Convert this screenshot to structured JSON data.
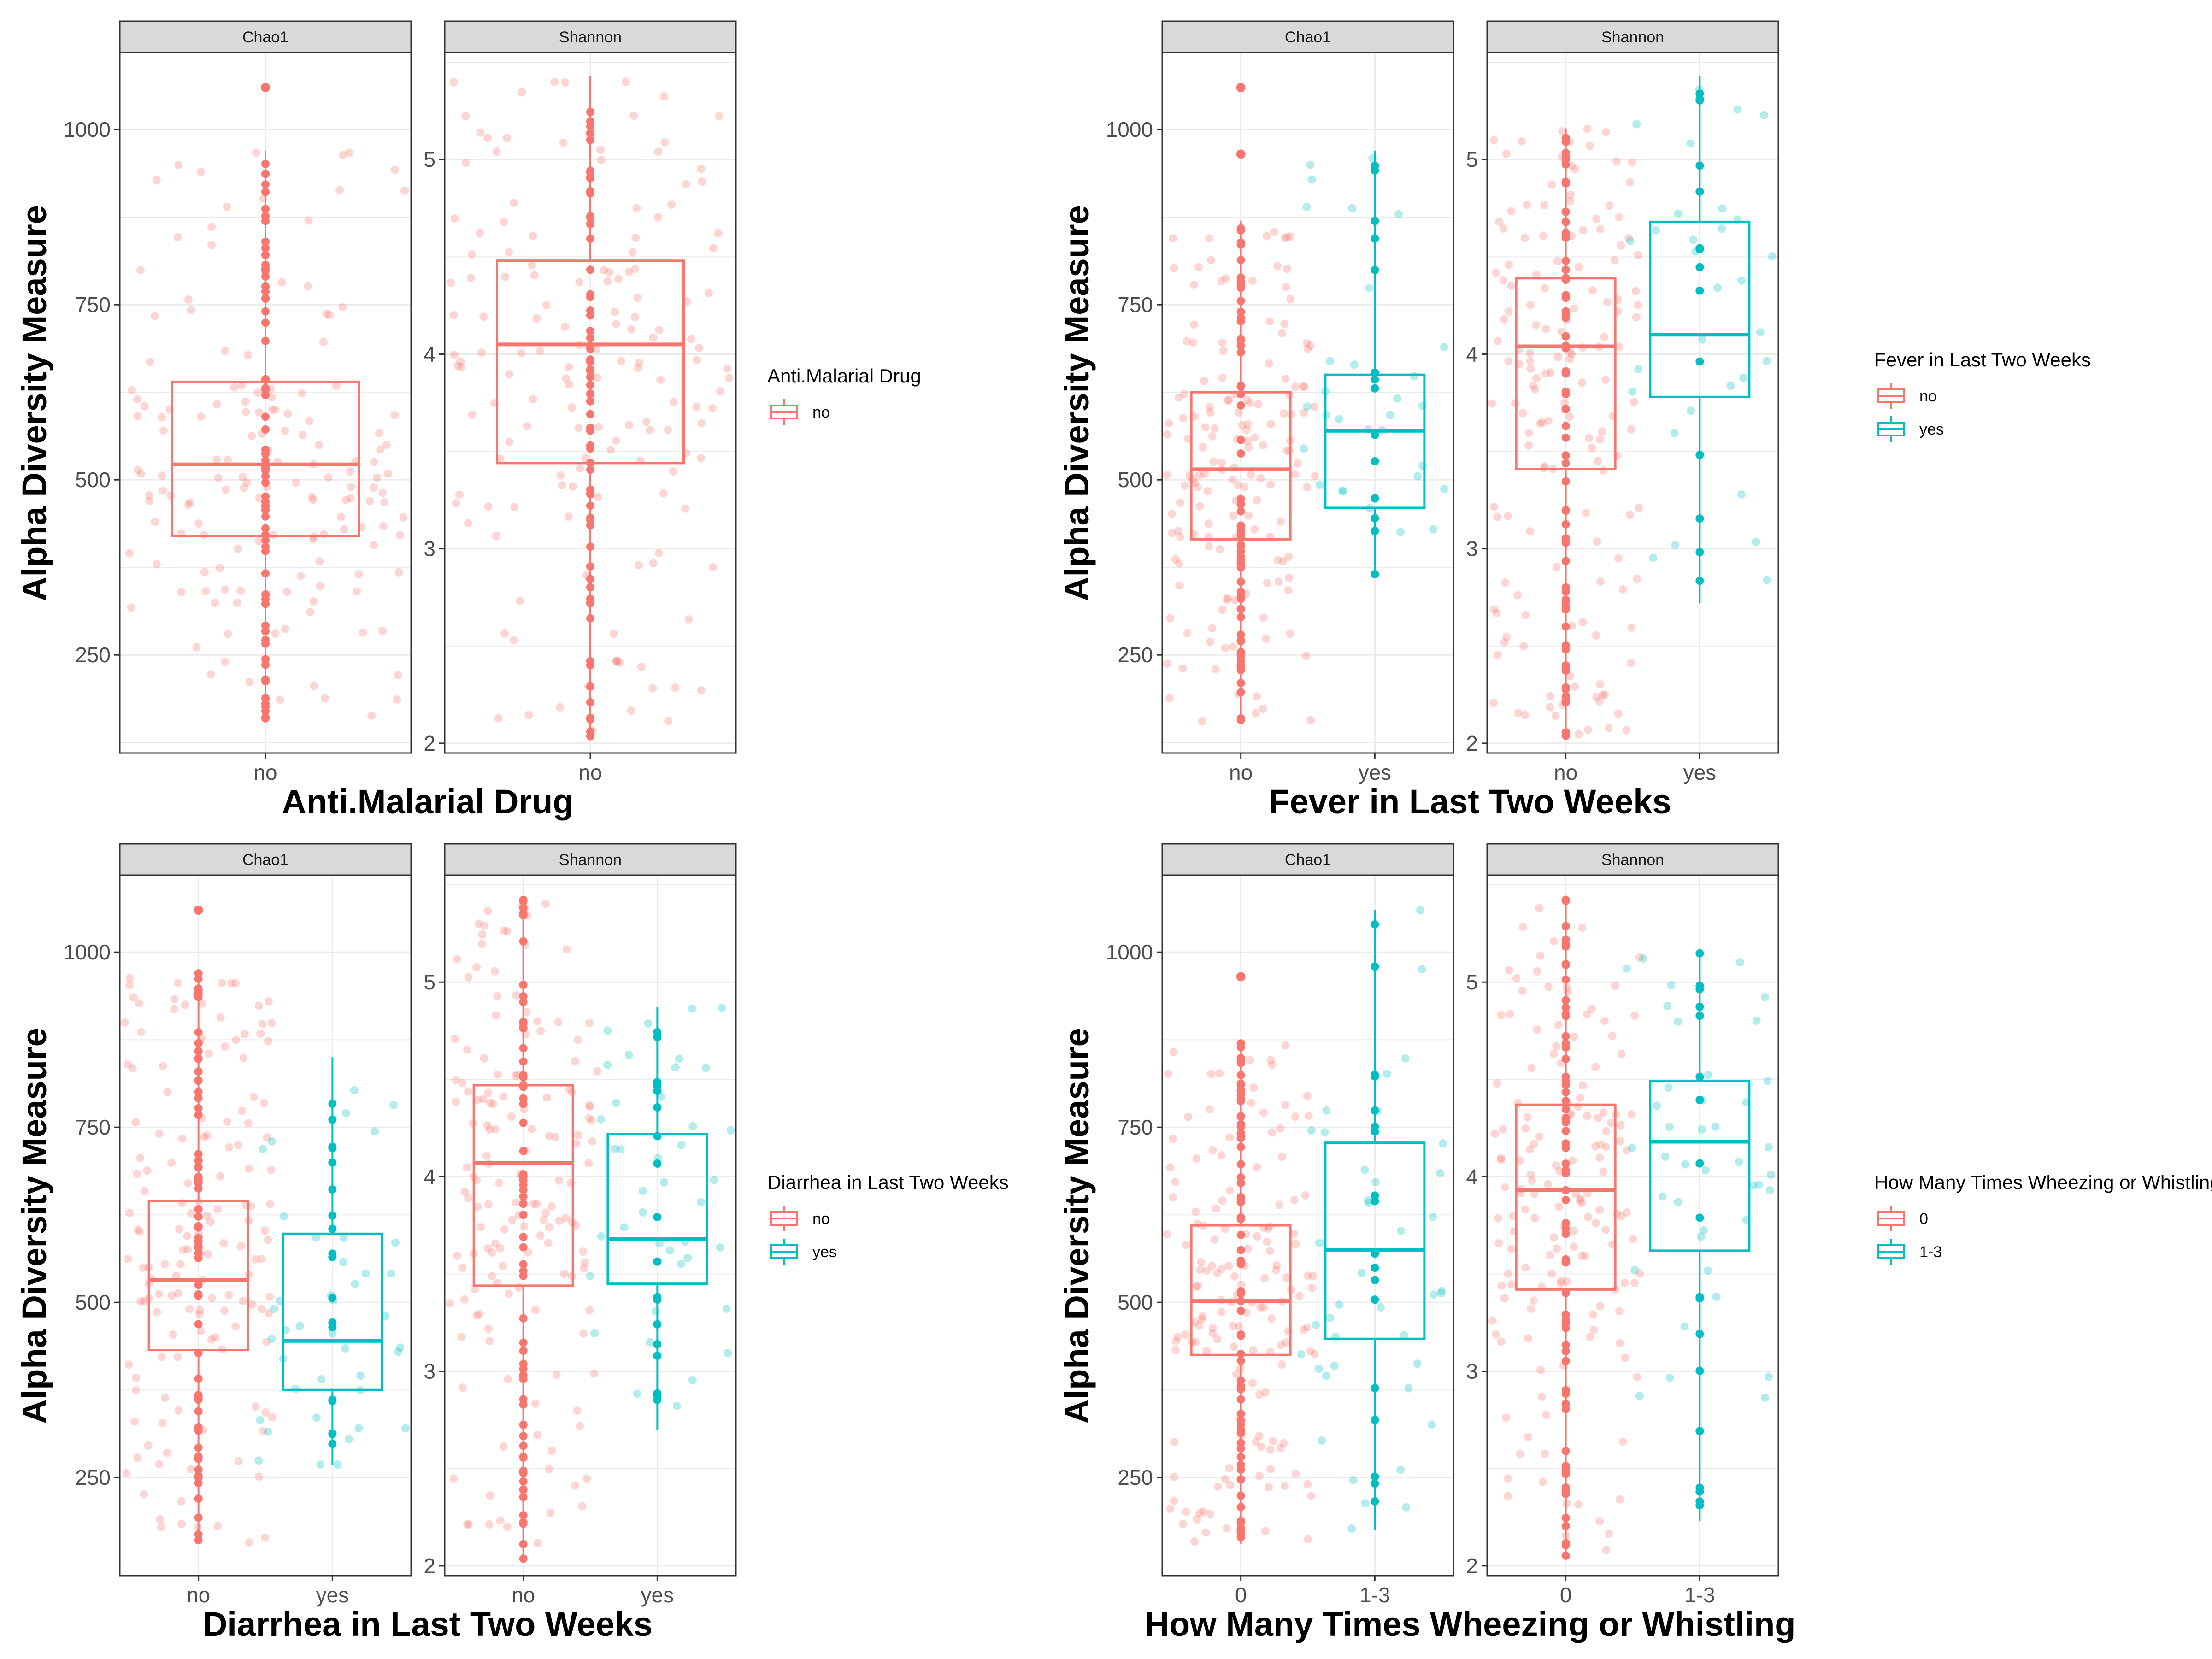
{
  "colors": {
    "group1": "#F8766D",
    "group2": "#00BFC4",
    "strip_bg": "#D9D9D9",
    "grid": "#EBEBEB",
    "panel_border": "#333333"
  },
  "y_axis_title": "Alpha Diversity Measure",
  "chart_data": [
    {
      "type": "boxplot",
      "xlabel": "Anti.Malarial Drug",
      "ylabel": "Alpha Diversity Measure",
      "legend": {
        "title": "Anti.Malarial Drug",
        "entries": [
          "no"
        ]
      },
      "panels": [
        {
          "strip": "Chao1",
          "ylim": [
            110,
            1110
          ],
          "yticks": [
            250,
            500,
            750,
            1000
          ],
          "groups": [
            {
              "label": "no",
              "color": "#F8766D",
              "q1": 420,
              "median": 522,
              "q3": 640,
              "min": 155,
              "max": 970,
              "outliers": [
                1060
              ]
            }
          ]
        },
        {
          "strip": "Shannon",
          "ylim": [
            1.95,
            5.55
          ],
          "yticks": [
            2,
            3,
            4,
            5
          ],
          "groups": [
            {
              "label": "no",
              "color": "#F8766D",
              "q1": 3.44,
              "median": 4.05,
              "q3": 4.48,
              "min": 2.03,
              "max": 5.43,
              "outliers": []
            }
          ]
        }
      ]
    },
    {
      "type": "boxplot",
      "xlabel": "Fever in Last Two Weeks",
      "ylabel": "Alpha Diversity Measure",
      "legend": {
        "title": "Fever in Last Two Weeks",
        "entries": [
          "no",
          "yes"
        ]
      },
      "panels": [
        {
          "strip": "Chao1",
          "ylim": [
            110,
            1110
          ],
          "yticks": [
            250,
            500,
            750,
            1000
          ],
          "groups": [
            {
              "label": "no",
              "color": "#F8766D",
              "q1": 415,
              "median": 515,
              "q3": 625,
              "min": 155,
              "max": 870,
              "outliers": [
                965,
                1060
              ]
            },
            {
              "label": "yes",
              "color": "#00BFC4",
              "q1": 460,
              "median": 570,
              "q3": 650,
              "min": 360,
              "max": 970,
              "outliers": []
            }
          ]
        },
        {
          "strip": "Shannon",
          "ylim": [
            1.95,
            5.55
          ],
          "yticks": [
            2,
            3,
            4,
            5
          ],
          "groups": [
            {
              "label": "no",
              "color": "#F8766D",
              "q1": 3.41,
              "median": 4.04,
              "q3": 4.39,
              "min": 2.03,
              "max": 5.16,
              "outliers": []
            },
            {
              "label": "yes",
              "color": "#00BFC4",
              "q1": 3.78,
              "median": 4.1,
              "q3": 4.68,
              "min": 2.72,
              "max": 5.43,
              "outliers": []
            }
          ]
        }
      ]
    },
    {
      "type": "boxplot",
      "xlabel": "Diarrhea in Last Two Weeks",
      "ylabel": "Alpha Diversity Measure",
      "legend": {
        "title": "Diarrhea in Last Two Weeks",
        "entries": [
          "no",
          "yes"
        ]
      },
      "panels": [
        {
          "strip": "Chao1",
          "ylim": [
            110,
            1110
          ],
          "yticks": [
            250,
            500,
            750,
            1000
          ],
          "groups": [
            {
              "label": "no",
              "color": "#F8766D",
              "q1": 432,
              "median": 532,
              "q3": 645,
              "min": 155,
              "max": 970,
              "outliers": [
                1060
              ]
            },
            {
              "label": "yes",
              "color": "#00BFC4",
              "q1": 375,
              "median": 445,
              "q3": 598,
              "min": 268,
              "max": 850,
              "outliers": []
            }
          ]
        },
        {
          "strip": "Shannon",
          "ylim": [
            1.95,
            5.55
          ],
          "yticks": [
            2,
            3,
            4,
            5
          ],
          "groups": [
            {
              "label": "no",
              "color": "#F8766D",
              "q1": 3.44,
              "median": 4.07,
              "q3": 4.47,
              "min": 2.03,
              "max": 5.43,
              "outliers": []
            },
            {
              "label": "yes",
              "color": "#00BFC4",
              "q1": 3.45,
              "median": 3.68,
              "q3": 4.22,
              "min": 2.7,
              "max": 4.87,
              "outliers": []
            }
          ]
        }
      ]
    },
    {
      "type": "boxplot",
      "xlabel": "How Many Times Wheezing or Whistling",
      "ylabel": "Alpha Diversity Measure",
      "legend": {
        "title": "How Many Times Wheezing or Whistling",
        "entries": [
          "0",
          "1-3"
        ]
      },
      "panels": [
        {
          "strip": "Chao1",
          "ylim": [
            110,
            1110
          ],
          "yticks": [
            250,
            500,
            750,
            1000
          ],
          "groups": [
            {
              "label": "0",
              "color": "#F8766D",
              "q1": 425,
              "median": 502,
              "q3": 610,
              "min": 155,
              "max": 870,
              "outliers": [
                965
              ]
            },
            {
              "label": "1-3",
              "color": "#00BFC4",
              "q1": 448,
              "median": 575,
              "q3": 728,
              "min": 175,
              "max": 1060,
              "outliers": []
            }
          ]
        },
        {
          "strip": "Shannon",
          "ylim": [
            1.95,
            5.55
          ],
          "yticks": [
            2,
            3,
            4,
            5
          ],
          "groups": [
            {
              "label": "0",
              "color": "#F8766D",
              "q1": 3.42,
              "median": 3.93,
              "q3": 4.37,
              "min": 2.03,
              "max": 5.43,
              "outliers": []
            },
            {
              "label": "1-3",
              "color": "#00BFC4",
              "q1": 3.62,
              "median": 4.18,
              "q3": 4.49,
              "min": 2.23,
              "max": 5.15,
              "outliers": []
            }
          ]
        }
      ]
    }
  ]
}
